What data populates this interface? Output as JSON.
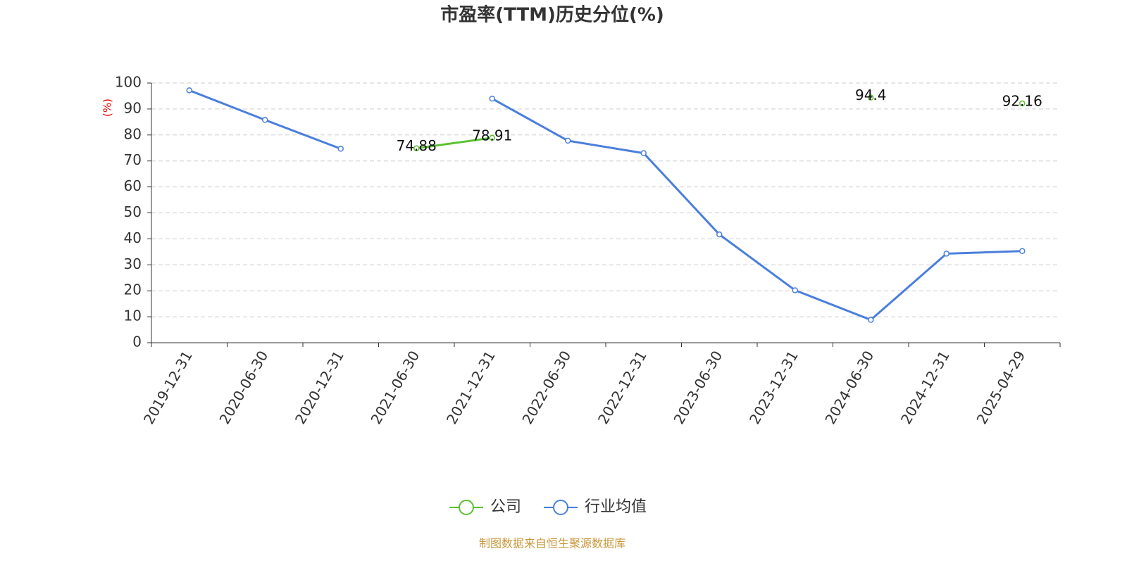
{
  "chart_data": {
    "type": "line",
    "title": "市盈率(TTM)历史分位(%)",
    "y_label": "(%)",
    "source": "制图数据来自恒生聚源数据库",
    "categories": [
      "2019-12-31",
      "2020-06-30",
      "2020-12-31",
      "2021-06-30",
      "2021-12-31",
      "2022-06-30",
      "2022-12-31",
      "2023-06-30",
      "2023-12-31",
      "2024-06-30",
      "2024-12-31",
      "2025-04-29"
    ],
    "series": [
      {
        "name": "公司",
        "color": "#5cc12f",
        "labels": true,
        "values": [
          null,
          null,
          null,
          74.88,
          78.91,
          null,
          null,
          null,
          null,
          94.4,
          null,
          92.16
        ]
      },
      {
        "name": "行业均值",
        "color": "#4a7fdc",
        "labels": false,
        "values": [
          97.2,
          85.8,
          74.7,
          null,
          94.0,
          77.8,
          73.0,
          41.7,
          20.2,
          8.8,
          34.3,
          35.3
        ]
      }
    ],
    "ylim": [
      0,
      100
    ],
    "yticks": [
      0,
      10,
      20,
      30,
      40,
      50,
      60,
      70,
      80,
      90,
      100
    ],
    "grid": true,
    "legend": "bottom"
  }
}
